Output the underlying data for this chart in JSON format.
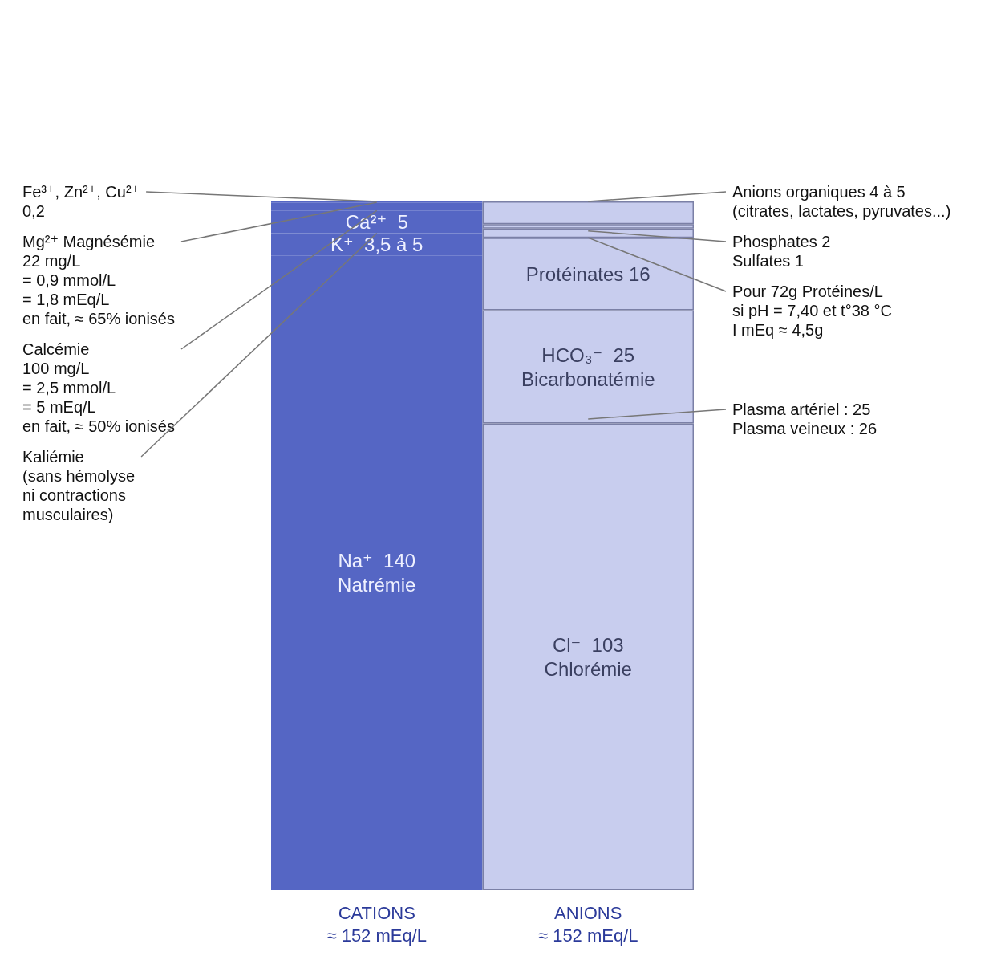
{
  "chart_data": {
    "type": "bar",
    "stacked": true,
    "categories": [
      "CATIONS\n≈ 152 mEq/L",
      "ANIONS\n≈ 152 mEq/L"
    ],
    "series": [
      {
        "colors": [
          "#5566c4",
          "#c8cdee"
        ],
        "values": [
          140,
          103
        ],
        "value_labels": [
          "Na⁺  140\nNatrémie",
          "Cl⁻  103\nChlorémie"
        ]
      },
      {
        "colors": [
          "#5566c4",
          "#c8cdee"
        ],
        "values": [
          5,
          25
        ],
        "value_labels": [
          "K⁺  3,5 à 5",
          "HCO₃⁻  25\nBicarbonatémie"
        ]
      },
      {
        "colors": [
          "#5566c4",
          "#c8cdee"
        ],
        "values": [
          5,
          16
        ],
        "value_labels": [
          "Ca²⁺  5",
          "Protéinates 16"
        ]
      },
      {
        "colors": [
          "#5566c4",
          "#c8cdee"
        ],
        "values": [
          1.8,
          2
        ],
        "value_labels": [
          null,
          null
        ]
      },
      {
        "colors": [
          "#5566c4",
          "#c8cdee"
        ],
        "values": [
          0.2,
          1
        ],
        "value_labels": [
          null,
          null
        ]
      },
      {
        "colors": [
          "#5566c4",
          "#c8cdee"
        ],
        "values": [
          null,
          5
        ],
        "value_labels": [
          null,
          null
        ]
      }
    ],
    "annotations": [
      {
        "text": "Mg²⁺ Magnésémie\n22 mg/L\n= 0,9 mmol/L\n= 1,8 mEq/L\nen fait, ≈ 65% ionisés",
        "x": "CATIONS\n≈ 152 mEq/L",
        "y": 151.8
      },
      {
        "text": "Fe³⁺, Zn²⁺, Cu²⁺\n0,2",
        "x": "CATIONS\n≈ 152 mEq/L",
        "y": 152
      },
      {
        "text": "Calcémie\n100 mg/L\n= 2,5 mmol/L\n= 5 mEq/L\nen fait, ≈ 50% ionisés",
        "x": "CATIONS\n≈ 152 mEq/L",
        "y": 150
      },
      {
        "text": "Kaliémie\n(sans hémolyse\nni contractions\nmusculaires)",
        "x": "CATIONS\n≈ 152 mEq/L",
        "y": 145
      },
      {
        "text": "Anions organiques 4 à 5\n(citrates, lactates, pyruvates...)",
        "x": "ANIONS\n≈ 152 mEq/L",
        "y": 152
      },
      {
        "text": "Phosphates 2\nSulfates 1",
        "x": "ANIONS\n≈ 152 mEq/L",
        "y": 145.5
      },
      {
        "text": "Pour 72g Protéines/L\nsi pH = 7,40 et t°38 °C\nI mEq ≈ 4,5g",
        "x": "ANIONS\n≈ 152 mEq/L",
        "y": 144
      },
      {
        "text": "Plasma artériel : 25\nPlasma veineux : 26",
        "x": "ANIONS\n≈ 152 mEq/L",
        "y": 104
      }
    ]
  }
}
